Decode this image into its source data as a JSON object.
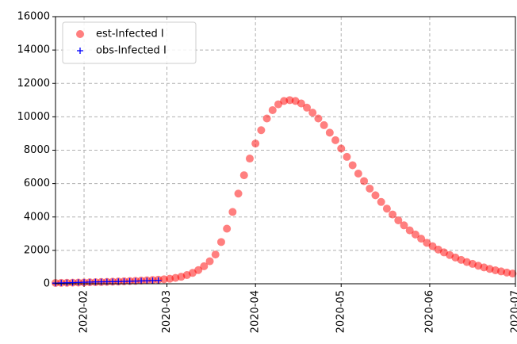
{
  "chart_data": {
    "type": "scatter",
    "series": [
      {
        "name": "est-Infected I",
        "color": "#ff0000",
        "marker": "circle",
        "x": [
          "2020-01-22",
          "2020-01-24",
          "2020-01-26",
          "2020-01-28",
          "2020-01-30",
          "2020-02-01",
          "2020-02-03",
          "2020-02-05",
          "2020-02-07",
          "2020-02-09",
          "2020-02-11",
          "2020-02-13",
          "2020-02-15",
          "2020-02-17",
          "2020-02-19",
          "2020-02-21",
          "2020-02-23",
          "2020-02-25",
          "2020-02-27",
          "2020-02-29",
          "2020-03-02",
          "2020-03-04",
          "2020-03-06",
          "2020-03-08",
          "2020-03-10",
          "2020-03-12",
          "2020-03-14",
          "2020-03-16",
          "2020-03-18",
          "2020-03-20",
          "2020-03-22",
          "2020-03-24",
          "2020-03-26",
          "2020-03-28",
          "2020-03-30",
          "2020-04-01",
          "2020-04-03",
          "2020-04-05",
          "2020-04-07",
          "2020-04-09",
          "2020-04-11",
          "2020-04-13",
          "2020-04-15",
          "2020-04-17",
          "2020-04-19",
          "2020-04-21",
          "2020-04-23",
          "2020-04-25",
          "2020-04-27",
          "2020-04-29",
          "2020-05-01",
          "2020-05-03",
          "2020-05-05",
          "2020-05-07",
          "2020-05-09",
          "2020-05-11",
          "2020-05-13",
          "2020-05-15",
          "2020-05-17",
          "2020-05-19",
          "2020-05-21",
          "2020-05-23",
          "2020-05-25",
          "2020-05-27",
          "2020-05-29",
          "2020-05-31",
          "2020-06-02",
          "2020-06-04",
          "2020-06-06",
          "2020-06-08",
          "2020-06-10",
          "2020-06-12",
          "2020-06-14",
          "2020-06-16",
          "2020-06-18",
          "2020-06-20",
          "2020-06-22",
          "2020-06-24",
          "2020-06-26",
          "2020-06-28",
          "2020-06-30"
        ],
        "values": [
          50,
          55,
          60,
          65,
          72,
          80,
          88,
          96,
          105,
          115,
          125,
          135,
          148,
          160,
          175,
          190,
          205,
          225,
          245,
          270,
          300,
          350,
          420,
          520,
          650,
          820,
          1050,
          1350,
          1750,
          2500,
          3300,
          4300,
          5400,
          6500,
          7500,
          8400,
          9200,
          9900,
          10400,
          10750,
          10950,
          11000,
          10950,
          10800,
          10550,
          10250,
          9900,
          9500,
          9050,
          8600,
          8100,
          7600,
          7100,
          6600,
          6150,
          5700,
          5300,
          4900,
          4500,
          4150,
          3800,
          3500,
          3200,
          2950,
          2700,
          2450,
          2250,
          2050,
          1880,
          1720,
          1570,
          1430,
          1300,
          1190,
          1080,
          980,
          890,
          810,
          740,
          670,
          610
        ]
      },
      {
        "name": "obs-Infected I",
        "color": "#0000ff",
        "marker": "plus",
        "x": [
          "2020-01-22",
          "2020-01-24",
          "2020-01-26",
          "2020-01-28",
          "2020-01-30",
          "2020-02-01",
          "2020-02-03",
          "2020-02-05",
          "2020-02-07",
          "2020-02-09",
          "2020-02-11",
          "2020-02-13",
          "2020-02-15",
          "2020-02-17",
          "2020-02-19",
          "2020-02-21",
          "2020-02-23",
          "2020-02-25",
          "2020-02-27"
        ],
        "values": [
          40,
          50,
          60,
          70,
          80,
          90,
          100,
          110,
          115,
          120,
          125,
          130,
          140,
          150,
          160,
          170,
          180,
          190,
          200
        ]
      }
    ],
    "xlim": [
      "2020-01-22",
      "2020-07-01"
    ],
    "xticks": [
      {
        "value": "2020-02-01",
        "label": "2020-02"
      },
      {
        "value": "2020-03-01",
        "label": "2020-03"
      },
      {
        "value": "2020-04-01",
        "label": "2020-04"
      },
      {
        "value": "2020-05-01",
        "label": "2020-05"
      },
      {
        "value": "2020-06-01",
        "label": "2020-06"
      },
      {
        "value": "2020-07-01",
        "label": "2020-07"
      }
    ],
    "ylim": [
      0,
      16000
    ],
    "yticks": [
      0,
      2000,
      4000,
      6000,
      8000,
      10000,
      12000,
      14000,
      16000
    ],
    "grid": true,
    "legend": "upper left"
  }
}
